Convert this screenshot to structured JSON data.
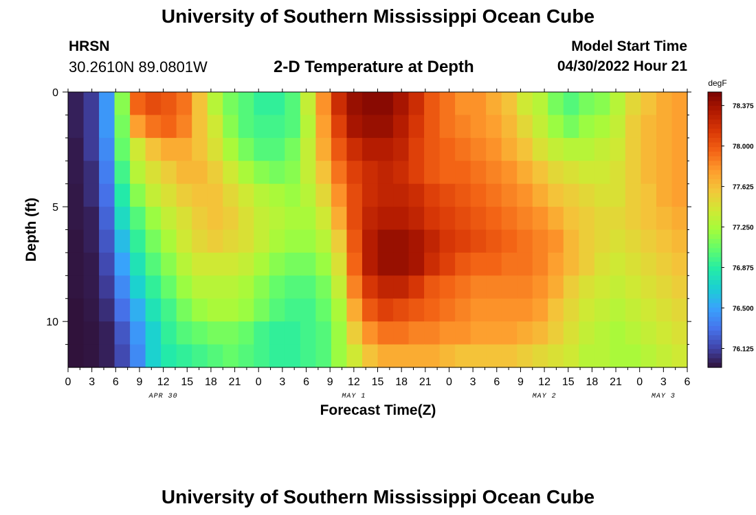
{
  "header": {
    "title": "University of Southern Mississippi Ocean Cube",
    "station": "HRSN",
    "coordinates": "30.2610N  89.0801W",
    "subtitle": "2-D Temperature at Depth",
    "model_start_label": "Model Start Time",
    "model_start_value": "04/30/2022 Hour 21"
  },
  "footer": {
    "title": "University of Southern Mississippi Ocean Cube"
  },
  "chart_data": {
    "type": "heatmap",
    "title": "2-D Temperature at Depth",
    "xlabel": "Forecast Time(Z)",
    "ylabel": "Depth (ft)",
    "x_ticks": [
      "0",
      "3",
      "6",
      "9",
      "12",
      "15",
      "18",
      "21",
      "0",
      "3",
      "6",
      "9",
      "12",
      "15",
      "18",
      "21",
      "0",
      "3",
      "6",
      "9",
      "12",
      "15",
      "18",
      "21",
      "0",
      "3",
      "6"
    ],
    "date_labels": [
      {
        "label": "APR 30",
        "hour": 12
      },
      {
        "label": "MAY 1",
        "hour": 36
      },
      {
        "label": "MAY 2",
        "hour": 60
      },
      {
        "label": "MAY 3",
        "hour": 75
      }
    ],
    "x_range_hours": [
      0,
      78
    ],
    "y_ticks": [
      "0",
      "5",
      "10"
    ],
    "y_range_ft": [
      0,
      12
    ],
    "colorbar": {
      "unit": "degF",
      "ticks": [
        "78.375",
        "78.000",
        "77.625",
        "77.250",
        "76.875",
        "76.500",
        "76.125"
      ],
      "range": [
        75.95,
        78.5
      ],
      "colors": [
        "#30123b",
        "#4145ab",
        "#4675ed",
        "#39a2fc",
        "#1bcfd4",
        "#24eca6",
        "#61fc6c",
        "#a4fc3b",
        "#d1e834",
        "#f3c63a",
        "#fe9b2d",
        "#f36315",
        "#d93806",
        "#b11901",
        "#7a0402"
      ]
    },
    "columns_hours": [
      0,
      2,
      4,
      6,
      8,
      10,
      12,
      14,
      16,
      18,
      20,
      22,
      24,
      26,
      28,
      30,
      32,
      34,
      36,
      38,
      40,
      42,
      44,
      46,
      48,
      50,
      52,
      54,
      56,
      58,
      60,
      62,
      64,
      66,
      68,
      70,
      72,
      74,
      76,
      78
    ],
    "rows_depth_ft": [
      0.5,
      1.5,
      2.5,
      3.5,
      4.5,
      5.5,
      6.5,
      7.5,
      8.5,
      9.5,
      10.5,
      11.5
    ],
    "values": [
      [
        76.0,
        76.1,
        76.45,
        77.15,
        77.95,
        78.05,
        78.0,
        77.9,
        77.6,
        77.3,
        77.1,
        77.0,
        76.9,
        76.9,
        77.0,
        77.35,
        77.8,
        78.2,
        78.4,
        78.45,
        78.45,
        78.35,
        78.2,
        78.0,
        77.9,
        77.8,
        77.8,
        77.7,
        77.6,
        77.4,
        77.3,
        77.1,
        77.0,
        77.1,
        77.15,
        77.3,
        77.5,
        77.6,
        77.7,
        77.75
      ],
      [
        76.0,
        76.1,
        76.45,
        77.1,
        77.75,
        77.9,
        77.95,
        77.85,
        77.6,
        77.4,
        77.15,
        77.0,
        76.95,
        76.95,
        77.0,
        77.3,
        77.75,
        78.1,
        78.35,
        78.4,
        78.4,
        78.3,
        78.15,
        78.0,
        77.9,
        77.85,
        77.8,
        77.75,
        77.65,
        77.5,
        77.35,
        77.2,
        77.1,
        77.2,
        77.25,
        77.35,
        77.55,
        77.65,
        77.7,
        77.75
      ],
      [
        75.98,
        76.1,
        76.4,
        77.05,
        77.4,
        77.6,
        77.7,
        77.7,
        77.6,
        77.45,
        77.25,
        77.1,
        77.0,
        77.0,
        77.1,
        77.35,
        77.7,
        78.0,
        78.2,
        78.3,
        78.3,
        78.25,
        78.1,
        78.0,
        77.95,
        77.9,
        77.85,
        77.8,
        77.7,
        77.6,
        77.45,
        77.35,
        77.3,
        77.3,
        77.35,
        77.4,
        77.55,
        77.65,
        77.7,
        77.75
      ],
      [
        75.98,
        76.05,
        76.35,
        76.95,
        77.3,
        77.45,
        77.55,
        77.65,
        77.65,
        77.55,
        77.4,
        77.25,
        77.15,
        77.1,
        77.15,
        77.35,
        77.6,
        77.9,
        78.1,
        78.2,
        78.25,
        78.2,
        78.1,
        78.0,
        77.95,
        77.95,
        77.9,
        77.85,
        77.8,
        77.7,
        77.6,
        77.5,
        77.45,
        77.4,
        77.4,
        77.45,
        77.55,
        77.65,
        77.7,
        77.75
      ],
      [
        75.97,
        76.05,
        76.3,
        76.85,
        77.15,
        77.35,
        77.45,
        77.55,
        77.6,
        77.6,
        77.5,
        77.4,
        77.3,
        77.25,
        77.2,
        77.3,
        77.5,
        77.8,
        78.05,
        78.2,
        78.25,
        78.25,
        78.2,
        78.1,
        78.05,
        78.0,
        77.95,
        77.9,
        77.85,
        77.8,
        77.7,
        77.6,
        77.55,
        77.5,
        77.45,
        77.45,
        77.55,
        77.6,
        77.7,
        77.75
      ],
      [
        75.97,
        76.0,
        76.25,
        76.75,
        77.0,
        77.2,
        77.35,
        77.45,
        77.55,
        77.6,
        77.55,
        77.45,
        77.35,
        77.3,
        77.25,
        77.25,
        77.4,
        77.7,
        78.05,
        78.25,
        78.3,
        78.3,
        78.25,
        78.15,
        78.1,
        78.05,
        78.0,
        77.95,
        77.9,
        77.85,
        77.8,
        77.7,
        77.6,
        77.55,
        77.5,
        77.5,
        77.55,
        77.6,
        77.65,
        77.7
      ],
      [
        75.96,
        76.0,
        76.2,
        76.6,
        76.9,
        77.1,
        77.25,
        77.4,
        77.5,
        77.55,
        77.5,
        77.45,
        77.35,
        77.25,
        77.2,
        77.2,
        77.3,
        77.55,
        78.0,
        78.3,
        78.4,
        78.4,
        78.35,
        78.25,
        78.15,
        78.1,
        78.05,
        78.0,
        77.95,
        77.9,
        77.85,
        77.8,
        77.65,
        77.55,
        77.5,
        77.45,
        77.5,
        77.55,
        77.6,
        77.65
      ],
      [
        75.96,
        75.98,
        76.15,
        76.5,
        76.8,
        77.0,
        77.15,
        77.3,
        77.4,
        77.4,
        77.4,
        77.35,
        77.25,
        77.15,
        77.1,
        77.1,
        77.2,
        77.45,
        77.95,
        78.3,
        78.4,
        78.4,
        78.35,
        78.2,
        78.1,
        78.0,
        77.95,
        77.95,
        77.9,
        77.9,
        77.85,
        77.75,
        77.65,
        77.55,
        77.45,
        77.4,
        77.45,
        77.5,
        77.55,
        77.6
      ],
      [
        75.96,
        75.98,
        76.1,
        76.4,
        76.7,
        76.9,
        77.05,
        77.2,
        77.3,
        77.3,
        77.3,
        77.25,
        77.15,
        77.05,
        77.0,
        77.0,
        77.1,
        77.35,
        77.85,
        78.15,
        78.25,
        78.25,
        78.15,
        78.0,
        77.95,
        77.9,
        77.85,
        77.85,
        77.85,
        77.85,
        77.8,
        77.7,
        77.55,
        77.45,
        77.4,
        77.35,
        77.4,
        77.45,
        77.5,
        77.55
      ],
      [
        75.95,
        75.97,
        76.05,
        76.3,
        76.55,
        76.8,
        76.95,
        77.1,
        77.2,
        77.25,
        77.25,
        77.2,
        77.1,
        77.0,
        76.95,
        76.95,
        77.05,
        77.25,
        77.7,
        78.0,
        78.1,
        78.05,
        78.0,
        77.95,
        77.9,
        77.85,
        77.8,
        77.8,
        77.8,
        77.8,
        77.75,
        77.6,
        77.5,
        77.4,
        77.35,
        77.3,
        77.35,
        77.4,
        77.45,
        77.5
      ],
      [
        75.95,
        75.96,
        76.0,
        76.2,
        76.45,
        76.7,
        76.9,
        77.0,
        77.05,
        77.1,
        77.1,
        77.05,
        76.95,
        76.9,
        76.9,
        76.95,
        77.0,
        77.2,
        77.55,
        77.8,
        77.9,
        77.9,
        77.85,
        77.85,
        77.8,
        77.8,
        77.75,
        77.75,
        77.75,
        77.7,
        77.65,
        77.55,
        77.45,
        77.35,
        77.3,
        77.25,
        77.3,
        77.35,
        77.4,
        77.45
      ],
      [
        75.95,
        75.96,
        76.0,
        76.15,
        76.4,
        76.7,
        76.85,
        76.9,
        76.95,
        77.0,
        77.05,
        77.0,
        76.95,
        76.9,
        76.9,
        76.95,
        77.0,
        77.2,
        77.4,
        77.6,
        77.7,
        77.7,
        77.7,
        77.7,
        77.65,
        77.6,
        77.6,
        77.6,
        77.6,
        77.55,
        77.5,
        77.45,
        77.4,
        77.3,
        77.3,
        77.25,
        77.25,
        77.3,
        77.35,
        77.4
      ]
    ]
  }
}
